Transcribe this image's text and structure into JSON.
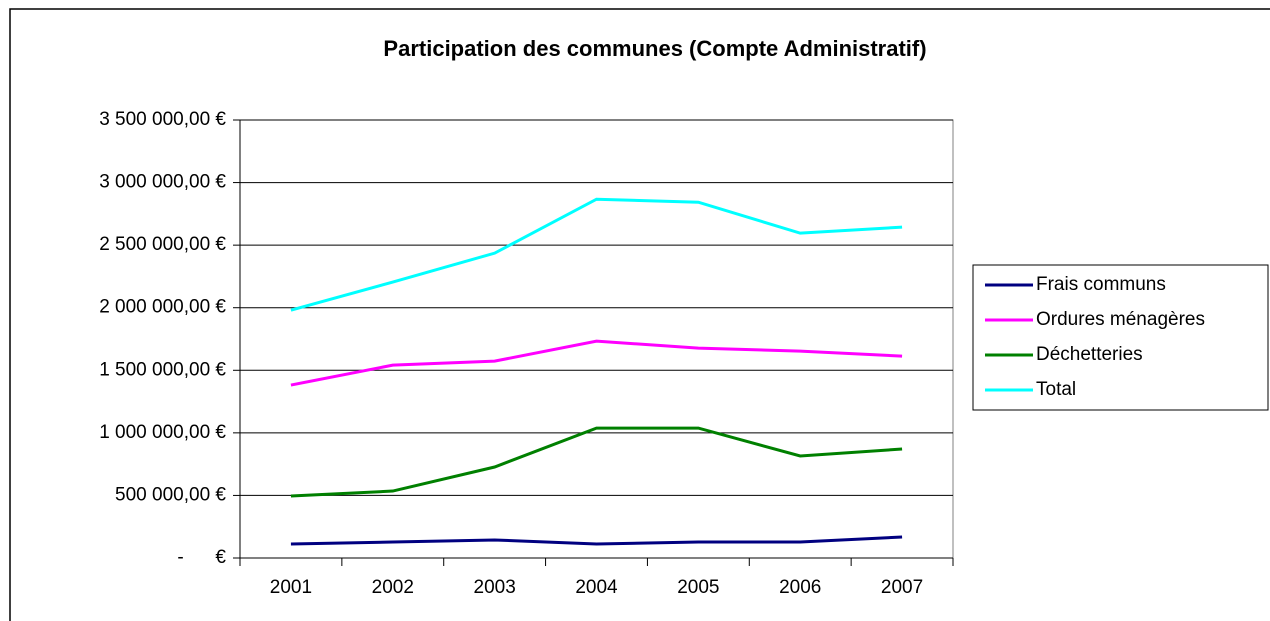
{
  "chart_data": {
    "type": "line",
    "title": "Participation des communes (Compte Administratif)",
    "categories": [
      "2001",
      "2002",
      "2003",
      "2004",
      "2005",
      "2006",
      "2007"
    ],
    "series": [
      {
        "name": "Frais communs",
        "color": "#000080",
        "values": [
          112000,
          128000,
          144000,
          112000,
          128000,
          128000,
          168000
        ]
      },
      {
        "name": "Ordures ménagères",
        "color": "#ff00ff",
        "values": [
          1382000,
          1541000,
          1573000,
          1733000,
          1677000,
          1653000,
          1613000
        ]
      },
      {
        "name": "Déchetteries",
        "color": "#008000",
        "values": [
          495000,
          535000,
          727000,
          1038000,
          1038000,
          815000,
          871000
        ]
      },
      {
        "name": "Total",
        "color": "#00ffff",
        "values": [
          1980000,
          2205000,
          2436000,
          2867000,
          2843000,
          2596000,
          2644000
        ]
      }
    ],
    "ylim": [
      0,
      3500000
    ],
    "yticks": [
      {
        "value": 0,
        "label": "-      €"
      },
      {
        "value": 500000,
        "label": "500 000,00 €"
      },
      {
        "value": 1000000,
        "label": "1 000 000,00 €"
      },
      {
        "value": 1500000,
        "label": "1 500 000,00 €"
      },
      {
        "value": 2000000,
        "label": "2 000 000,00 €"
      },
      {
        "value": 2500000,
        "label": "2 500 000,00 €"
      },
      {
        "value": 3000000,
        "label": "3 000 000,00 €"
      },
      {
        "value": 3500000,
        "label": "3 500 000,00 €"
      }
    ],
    "grid": true,
    "legend": "right"
  }
}
